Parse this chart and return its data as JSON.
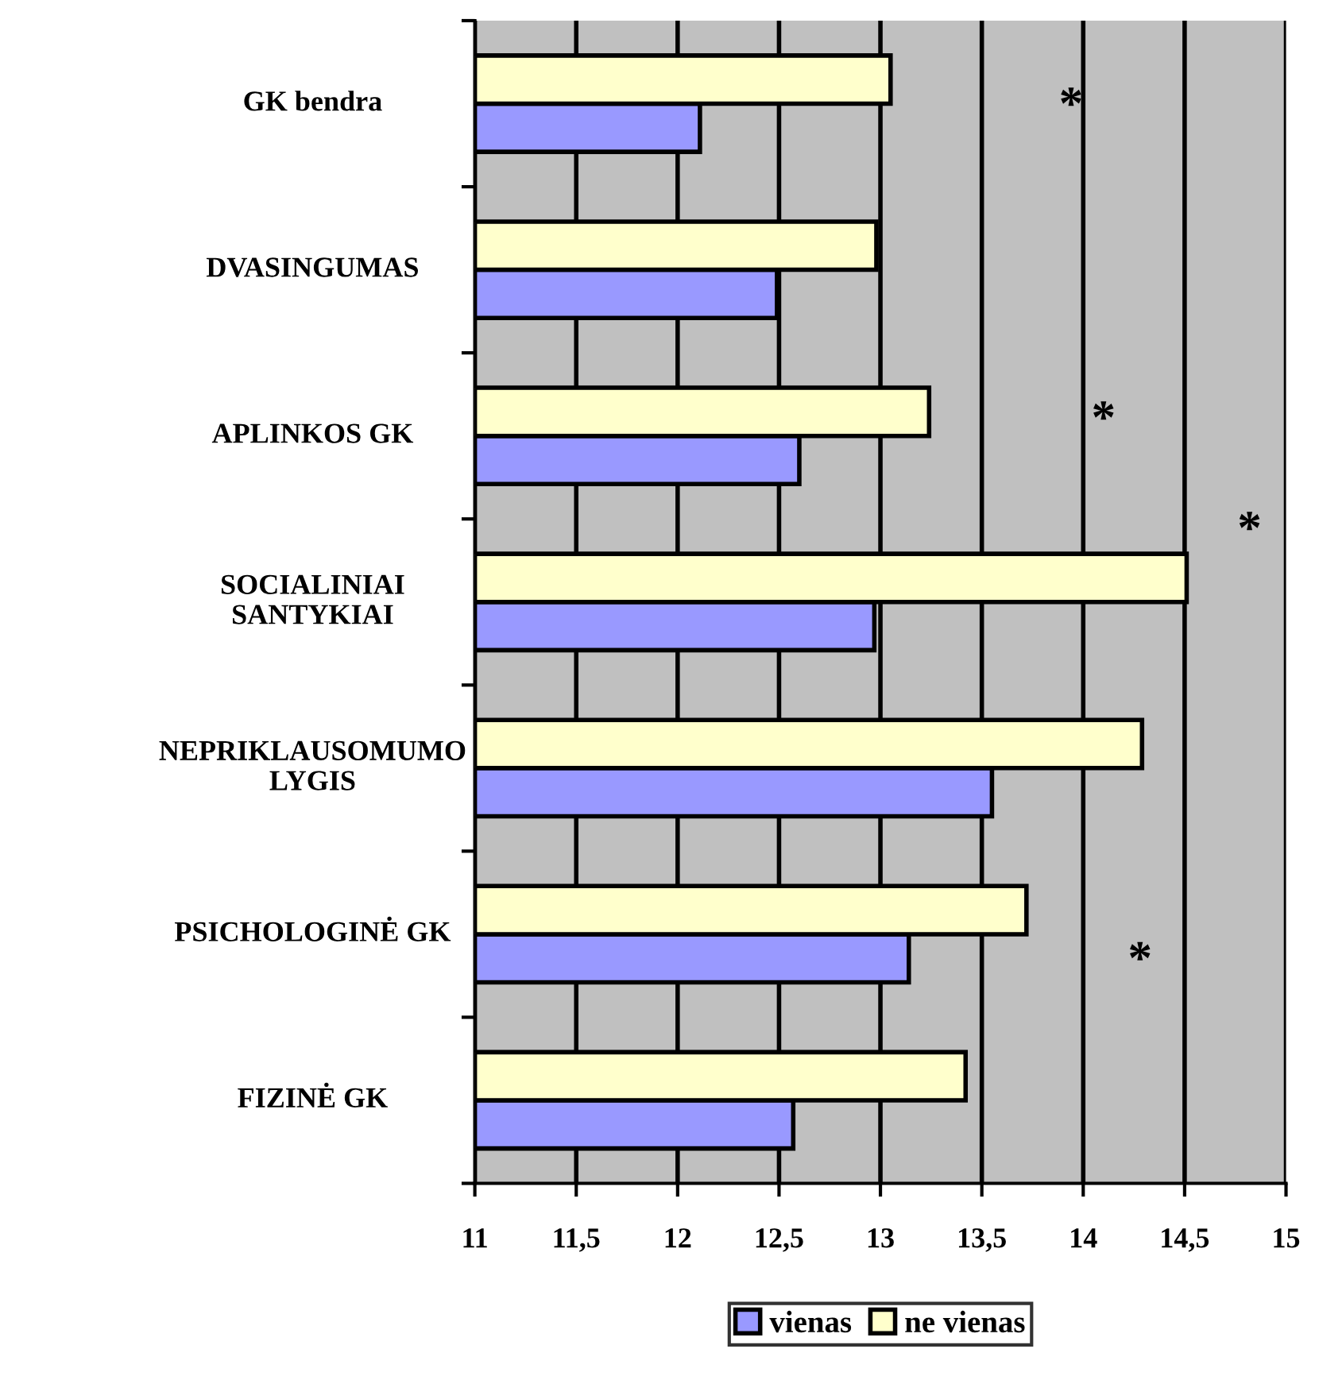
{
  "chart_data": {
    "type": "bar",
    "orientation": "horizontal",
    "categories": [
      "GK bendra",
      "DVASINGUMAS",
      "APLINKOS GK",
      "SOCIALINIAI\nSANTYKIAI",
      "NEPRIKLAUSOMUMO\nLYGIS",
      "PSICHOLOGINĖ GK",
      "FIZINĖ GK"
    ],
    "series": [
      {
        "name": "vienas",
        "color": "#9999ff",
        "values": [
          12.11,
          12.49,
          12.6,
          12.97,
          13.55,
          13.14,
          12.57
        ]
      },
      {
        "name": "ne vienas",
        "color": "#ffffcc",
        "values": [
          13.05,
          12.98,
          13.24,
          14.51,
          14.29,
          13.72,
          13.42
        ]
      }
    ],
    "xlim": [
      11,
      15
    ],
    "xticks": [
      11,
      {
        "value": 11.5,
        "label": "11,5"
      },
      12,
      {
        "value": 12.5,
        "label": "12,5"
      },
      13,
      {
        "value": 13.5,
        "label": "13,5"
      },
      14,
      {
        "value": 14.5,
        "label": "14,5"
      },
      15
    ],
    "grid": "x",
    "legend": "bottom",
    "annotations": [
      "*",
      "*",
      "*",
      "*"
    ]
  }
}
